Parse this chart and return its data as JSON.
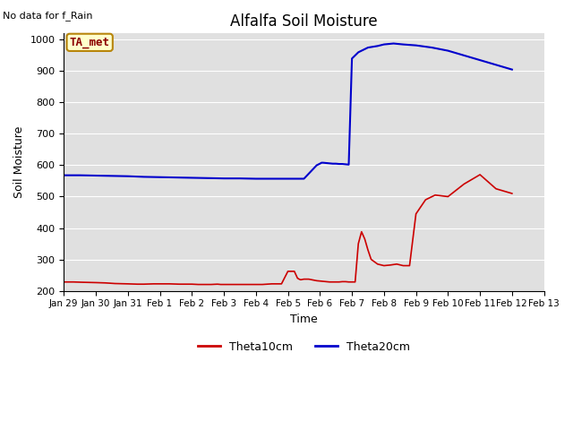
{
  "title": "Alfalfa Soil Moisture",
  "top_left_text": "No data for f_Rain",
  "ylabel": "Soil Moisture",
  "xlabel": "Time",
  "ylim": [
    200,
    1020
  ],
  "yticks": [
    200,
    300,
    400,
    500,
    600,
    700,
    800,
    900,
    1000
  ],
  "legend_label1": "Theta10cm",
  "legend_label2": "Theta20cm",
  "legend_box_label": "TA_met",
  "color_red": "#cc0000",
  "color_blue": "#0000cc",
  "bg_color": "#e0e0e0",
  "xtick_labels": [
    "Jan 29",
    "Jan 30",
    "Jan 31",
    "Feb 1",
    "Feb 2",
    "Feb 3",
    "Feb 4",
    "Feb 5",
    "Feb 6",
    "Feb 7",
    "Feb 8",
    "Feb 9",
    "Feb 10",
    "Feb 11",
    "Feb 12",
    "Feb 13"
  ],
  "theta10_x": [
    0,
    0.3,
    0.6,
    1.0,
    1.3,
    1.6,
    2.0,
    2.3,
    2.5,
    2.8,
    3.0,
    3.3,
    3.6,
    4.0,
    4.2,
    4.4,
    4.6,
    4.8,
    4.9,
    5.0,
    5.2,
    5.5,
    5.8,
    6.0,
    6.2,
    6.5,
    6.8,
    7.0,
    7.2,
    7.3,
    7.35,
    7.4,
    7.5,
    7.6,
    7.65,
    7.7,
    7.75,
    7.8,
    7.85,
    7.9,
    8.0,
    8.1,
    8.2,
    8.3,
    8.4,
    8.5,
    8.6,
    8.7,
    8.8,
    8.9,
    9.0,
    9.1,
    9.2,
    9.3,
    9.4,
    9.5,
    9.6,
    9.8,
    10.0,
    10.2,
    10.4,
    10.6,
    10.8,
    11.0,
    11.3,
    11.6,
    12.0,
    12.5,
    13.0,
    13.5,
    14.0
  ],
  "theta10_y": [
    228,
    228,
    227,
    226,
    225,
    223,
    222,
    221,
    221,
    222,
    222,
    222,
    221,
    221,
    220,
    220,
    220,
    221,
    220,
    220,
    220,
    220,
    220,
    220,
    220,
    222,
    222,
    262,
    262,
    240,
    237,
    235,
    237,
    237,
    237,
    236,
    235,
    234,
    233,
    232,
    231,
    230,
    229,
    228,
    228,
    228,
    228,
    229,
    229,
    228,
    228,
    228,
    350,
    388,
    365,
    330,
    300,
    285,
    280,
    282,
    285,
    280,
    280,
    445,
    490,
    505,
    500,
    540,
    570,
    525,
    510
  ],
  "theta20_x": [
    0,
    0.5,
    1.0,
    1.5,
    2.0,
    2.5,
    3.0,
    3.5,
    4.0,
    4.5,
    5.0,
    5.5,
    6.0,
    6.5,
    7.0,
    7.5,
    7.9,
    8.0,
    8.05,
    8.1,
    8.2,
    8.3,
    8.4,
    8.5,
    8.6,
    8.7,
    8.8,
    8.9,
    9.0,
    9.2,
    9.5,
    9.8,
    10.0,
    10.3,
    10.6,
    11.0,
    11.5,
    12.0,
    12.5,
    13.0,
    13.5,
    14.0
  ],
  "theta20_y": [
    568,
    568,
    567,
    566,
    565,
    563,
    562,
    561,
    560,
    559,
    558,
    558,
    557,
    557,
    557,
    557,
    600,
    605,
    608,
    608,
    607,
    606,
    605,
    605,
    604,
    604,
    603,
    602,
    940,
    960,
    975,
    980,
    985,
    988,
    985,
    982,
    975,
    965,
    950,
    935,
    920,
    905
  ]
}
